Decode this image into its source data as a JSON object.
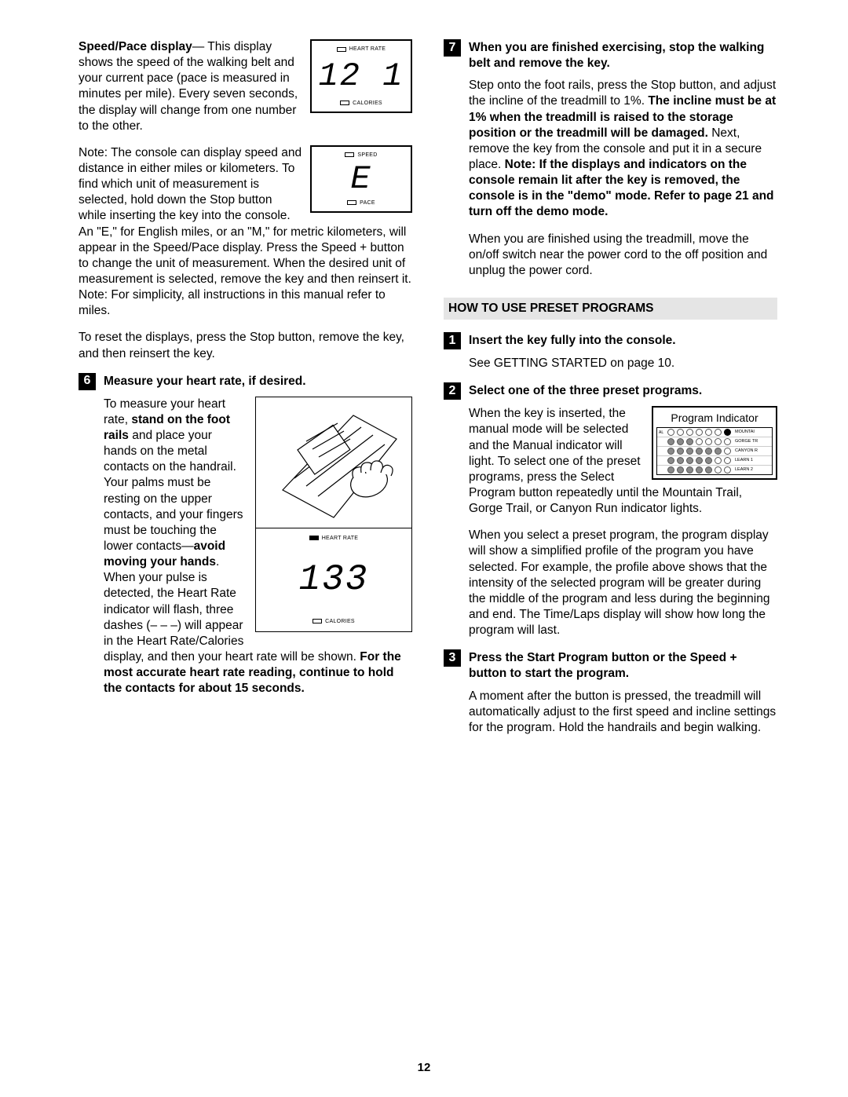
{
  "page_number": "12",
  "left": {
    "speedpace_title": "Speed/Pace display",
    "speedpace_body1": "— This display shows the speed of the walking belt and your current pace (pace is measured in minutes per",
    "speedpace_body2": "mile). Every seven seconds, the display will change from one number to the other.",
    "display1": {
      "top_label": "HEART RATE",
      "value": "12 1",
      "bottom_label": "CALORIES"
    },
    "note_body1": "Note: The console can display speed and distance in either miles or kilometers. To find which unit of measurement is selected, hold",
    "display2": {
      "top_label": "SPEED",
      "value": "E",
      "bottom_label": "PACE"
    },
    "note_body2": "down the Stop button while inserting the key into the console. An \"E,\" for English miles, or an \"M,\" for metric kilometers, will appear in the Speed/Pace display. Press the Speed + button to change the unit of measurement. When the desired unit of measurement is selected, remove the key and then reinsert it. Note: For simplicity, all instructions in this manual refer to miles.",
    "reset_body": "To reset the displays, press the Stop button, remove the key, and then reinsert the key.",
    "step6_num": "6",
    "step6_title": "Measure your heart rate, if desired.",
    "step6_body1a": "To measure your heart rate, ",
    "step6_body1b": "stand on the foot rails",
    "step6_body1c": " and place your hands on the metal contacts on the handrail. Your palms must be resting on the upper contacts, and your fingers must be touching the lower contacts—",
    "step6_body1d": "avoid",
    "step6_body2a": "moving your hands",
    "step6_body2b": ". When your pulse is detected, the Heart Rate indicator will flash, three dashes (– – –) will appear in the Heart Rate/Calories display, and then your heart rate will be shown. ",
    "step6_body2c": "For the most accurate heart rate reading, continue to hold the contacts for about 15 seconds.",
    "display3": {
      "top_label": "HEART RATE",
      "value": "133",
      "bottom_label": "CALORIES"
    }
  },
  "right": {
    "step7_num": "7",
    "step7_title": "When you are finished exercising, stop the walking belt and remove the key.",
    "step7_body1a": "Step onto the foot rails, press the Stop button, and adjust the incline of the treadmill to 1%. ",
    "step7_body1b": "The incline must be at 1% when the treadmill is raised to the storage position or the treadmill will be damaged.",
    "step7_body1c": " Next, remove the key from the console and put it in a secure place. ",
    "step7_body1d": "Note: If the displays and indicators on the console remain lit after the key is removed, the console is in the \"demo\" mode. Refer to page 21 and turn off the demo mode.",
    "step7_body2": "When you are finished using the treadmill, move the on/off switch near the power cord to the off position and unplug the power cord.",
    "section_title": "HOW TO USE PRESET PROGRAMS",
    "step1_num": "1",
    "step1_title": "Insert the key fully into the console.",
    "step1_body": "See GETTING STARTED on page 10.",
    "step2_num": "2",
    "step2_title": "Select one of the three preset programs.",
    "step2_body1": "When the key is inserted, the manual mode will be selected and the Manual indicator will light. To select one of the preset programs, press the Select Program button",
    "step2_body1b": "repeatedly until the Mountain Trail, Gorge Trail, or Canyon Run indicator lights.",
    "step2_body2": "When you select a preset program, the program display will show a simplified profile of the program you have selected. For example, the profile above shows that the intensity of the selected program will be greater during the middle of the program and less during the beginning and end. The Time/Laps display will show how long the program will last.",
    "prog_title": "Program Indicator",
    "prog_rows": [
      {
        "label": "MOUNTAI",
        "filled": 0,
        "black_last": true
      },
      {
        "label": "GORGE TR",
        "filled": 3,
        "black_last": false
      },
      {
        "label": "CANYON R",
        "filled": 6,
        "black_last": false
      },
      {
        "label": "LEARN 1",
        "filled": 5,
        "black_last": false
      },
      {
        "label": "LEARN 2",
        "filled": 5,
        "black_last": false
      }
    ],
    "step3_num": "3",
    "step3_title": "Press the Start Program button or the Speed + button to start the program.",
    "step3_body": "A moment after the button is pressed, the treadmill will automatically adjust to the first speed and incline settings for the program. Hold the handrails and begin walking."
  }
}
